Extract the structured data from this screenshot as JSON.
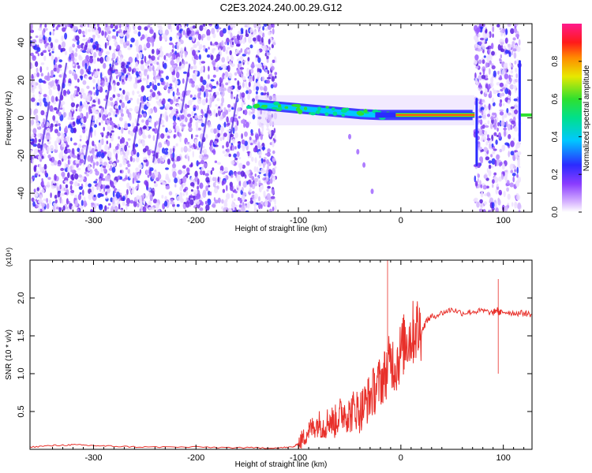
{
  "figure_title": "C2E3.2024.240.00.29.G12",
  "colors": {
    "snr_line": "#e8302a",
    "scatter": "#6a28e6",
    "axis": "#000000"
  },
  "chart_data": [
    {
      "type": "heatmap",
      "title": "C2E3.2024.240.00.29.G12",
      "xlabel": "Height of straight line (km)",
      "ylabel": "Frequency (Hz)",
      "xlim": [
        -362,
        128
      ],
      "ylim": [
        -50,
        50
      ],
      "x_ticks": [
        -300,
        -200,
        -100,
        0,
        100
      ],
      "x_tick_labels": [
        "-300",
        "-200",
        "-100",
        "0",
        "100"
      ],
      "y_ticks": [
        -40,
        -20,
        0,
        20,
        40
      ],
      "y_tick_labels": [
        "-40",
        "-20",
        "0",
        "20",
        "40"
      ],
      "colorbar": {
        "label": "Normalized spectral amplitude",
        "range": [
          0,
          1
        ],
        "ticks": [
          0,
          0.2,
          0.4,
          0.6,
          0.8
        ],
        "tick_labels": [
          "0.0",
          "0.2",
          "0.4",
          "0.6",
          "0.8"
        ],
        "colormap": "rainbow (white-purple-blue-cyan-green-yellow-red-magenta)"
      },
      "noise_regions_km": [
        [
          -362,
          -122
        ],
        [
          72,
          116
        ]
      ],
      "signal_band": [
        {
          "x": -140,
          "y": 7
        },
        {
          "x": -120,
          "y": 6
        },
        {
          "x": -100,
          "y": 5
        },
        {
          "x": -80,
          "y": 4
        },
        {
          "x": -60,
          "y": 3
        },
        {
          "x": -40,
          "y": 2
        },
        {
          "x": -20,
          "y": 1.5
        },
        {
          "x": 0,
          "y": 1.5
        },
        {
          "x": 40,
          "y": 1.5
        },
        {
          "x": 70,
          "y": 1.5
        }
      ],
      "secondary_trace": [
        {
          "x": -50,
          "y": -10
        },
        {
          "x": -42,
          "y": -18
        },
        {
          "x": -36,
          "y": -25
        },
        {
          "x": -28,
          "y": -39
        }
      ],
      "grid": false,
      "legend": "none"
    },
    {
      "type": "line",
      "xlabel": "Height of straight line (km)",
      "ylabel": "SNR (10 * v/v)",
      "y_multiplier_label": "(x10⁴)",
      "xlim": [
        -362,
        128
      ],
      "ylim": [
        0,
        2.5
      ],
      "x_ticks": [
        -300,
        -200,
        -100,
        0,
        100
      ],
      "x_tick_labels": [
        "-300",
        "-200",
        "-100",
        "0",
        "100"
      ],
      "y_ticks": [
        0.5,
        1.0,
        1.5,
        2.0
      ],
      "y_tick_labels": [
        "0.5",
        "1.0",
        "1.5",
        "2.0"
      ],
      "series": [
        {
          "color": "#e8302a",
          "x": [
            -362,
            -340,
            -320,
            -300,
            -280,
            -250,
            -200,
            -150,
            -120,
            -105,
            -100,
            -95,
            -90,
            -85,
            -80,
            -75,
            -70,
            -65,
            -60,
            -55,
            -50,
            -45,
            -40,
            -35,
            -30,
            -25,
            -20,
            -15,
            -10,
            -5,
            0,
            5,
            10,
            15,
            20,
            25,
            30,
            40,
            50,
            60,
            70,
            80,
            90,
            94,
            96,
            100,
            110,
            120,
            128
          ],
          "y": [
            0.03,
            0.05,
            0.06,
            0.05,
            0.04,
            0.03,
            0.03,
            0.02,
            0.02,
            0.03,
            0.08,
            0.15,
            0.25,
            0.3,
            0.35,
            0.3,
            0.4,
            0.35,
            0.45,
            0.5,
            0.45,
            0.55,
            0.5,
            0.6,
            0.7,
            0.8,
            0.9,
            1.0,
            1.2,
            1.1,
            1.3,
            1.45,
            1.5,
            1.6,
            1.55,
            1.7,
            1.75,
            1.8,
            1.85,
            1.8,
            1.82,
            1.83,
            1.8,
            1.85,
            1.8,
            1.82,
            1.8,
            1.8,
            1.78
          ]
        }
      ],
      "spikes": [
        {
          "x": -13,
          "y": 2.5
        },
        {
          "x": 95,
          "y": 2.25
        },
        {
          "x": 95,
          "y": 1.0
        }
      ],
      "grid": false,
      "legend": "none"
    }
  ]
}
